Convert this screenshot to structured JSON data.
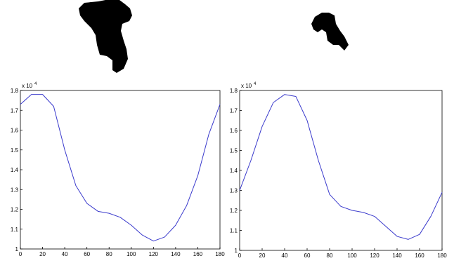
{
  "chart_data": [
    {
      "type": "line",
      "x": [
        0,
        10,
        20,
        30,
        40,
        50,
        60,
        70,
        80,
        90,
        100,
        110,
        120,
        130,
        140,
        150,
        160,
        170,
        180
      ],
      "series": [
        {
          "color": "#3a3acc",
          "values": [
            1.73,
            1.78,
            1.78,
            1.72,
            1.5,
            1.32,
            1.23,
            1.19,
            1.18,
            1.16,
            1.12,
            1.07,
            1.04,
            1.06,
            1.12,
            1.22,
            1.37,
            1.58,
            1.73
          ]
        }
      ],
      "xlim": [
        0,
        180
      ],
      "xticks": [
        0,
        20,
        40,
        60,
        80,
        100,
        120,
        140,
        160,
        180
      ],
      "ylim": [
        1,
        1.8
      ],
      "yticks": [
        1,
        1.1,
        1.2,
        1.3,
        1.4,
        1.5,
        1.6,
        1.7,
        1.8
      ],
      "y_scale_label": {
        "base": "x 10",
        "exponent": "4"
      }
    },
    {
      "type": "line",
      "x": [
        0,
        10,
        20,
        30,
        40,
        50,
        60,
        70,
        80,
        90,
        100,
        110,
        120,
        130,
        140,
        150,
        160,
        170,
        180
      ],
      "series": [
        {
          "color": "#3a3acc",
          "values": [
            1.3,
            1.45,
            1.62,
            1.74,
            1.78,
            1.77,
            1.65,
            1.45,
            1.28,
            1.22,
            1.2,
            1.19,
            1.17,
            1.12,
            1.07,
            1.055,
            1.08,
            1.17,
            1.29
          ]
        }
      ],
      "xlim": [
        0,
        180
      ],
      "xticks": [
        0,
        20,
        40,
        60,
        80,
        100,
        120,
        140,
        160,
        180
      ],
      "ylim": [
        1,
        1.8
      ],
      "yticks": [
        1,
        1.1,
        1.2,
        1.3,
        1.4,
        1.5,
        1.6,
        1.7,
        1.8
      ],
      "y_scale_label": {
        "base": "x 10",
        "exponent": "4"
      }
    }
  ]
}
